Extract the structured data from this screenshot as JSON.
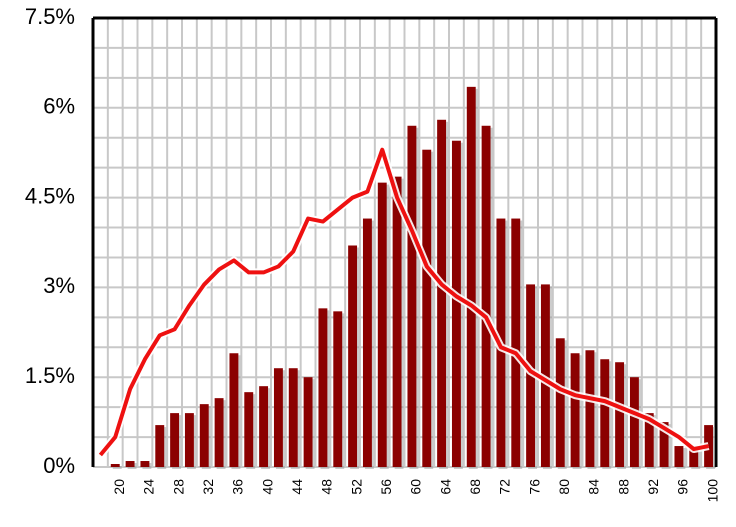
{
  "chart_data": {
    "type": "bar",
    "categories": [
      null,
      "20",
      null,
      "24",
      null,
      "28",
      null,
      "32",
      null,
      "36",
      null,
      "40",
      null,
      "44",
      null,
      "48",
      null,
      "52",
      null,
      "56",
      null,
      "60",
      null,
      "64",
      null,
      "68",
      null,
      "72",
      null,
      "76",
      null,
      "80",
      null,
      "84",
      null,
      "88",
      null,
      "92",
      null,
      "96",
      null,
      "100"
    ],
    "series": [
      {
        "type": "bar",
        "color": "#8b0000",
        "values": [
          0,
          0.05,
          0.1,
          0.1,
          0.7,
          0.9,
          0.9,
          1.05,
          1.15,
          1.9,
          1.25,
          1.35,
          1.65,
          1.65,
          1.5,
          2.65,
          2.6,
          3.7,
          4.15,
          4.75,
          4.85,
          5.7,
          5.3,
          5.8,
          5.45,
          6.35,
          5.7,
          4.15,
          4.15,
          3.05,
          3.05,
          2.15,
          1.9,
          1.95,
          1.8,
          1.75,
          1.5,
          0.9,
          0.75,
          0.35,
          0.35,
          0.7
        ]
      },
      {
        "type": "line",
        "color": "#ee1111",
        "values": [
          0.2,
          0.5,
          1.3,
          1.8,
          2.2,
          2.3,
          2.7,
          3.05,
          3.3,
          3.45,
          3.25,
          3.25,
          3.35,
          3.6,
          4.15,
          4.1,
          4.3,
          4.5,
          4.6,
          5.3,
          4.5,
          3.95,
          3.35,
          3.05,
          2.85,
          2.7,
          2.5,
          2.0,
          1.9,
          1.6,
          1.45,
          1.3,
          1.2,
          1.15,
          1.1,
          1.0,
          0.9,
          0.8,
          0.65,
          0.5,
          0.3,
          0.35
        ]
      }
    ],
    "ylim": [
      0,
      7.5
    ],
    "yticks": [
      {
        "value": 0,
        "label": "0%"
      },
      {
        "value": 1.5,
        "label": "1.5%"
      },
      {
        "value": 3,
        "label": "3%"
      },
      {
        "value": 4.5,
        "label": "4.5%"
      },
      {
        "value": 6,
        "label": "6%"
      },
      {
        "value": 7.5,
        "label": "7.5%"
      }
    ],
    "grid": true
  }
}
